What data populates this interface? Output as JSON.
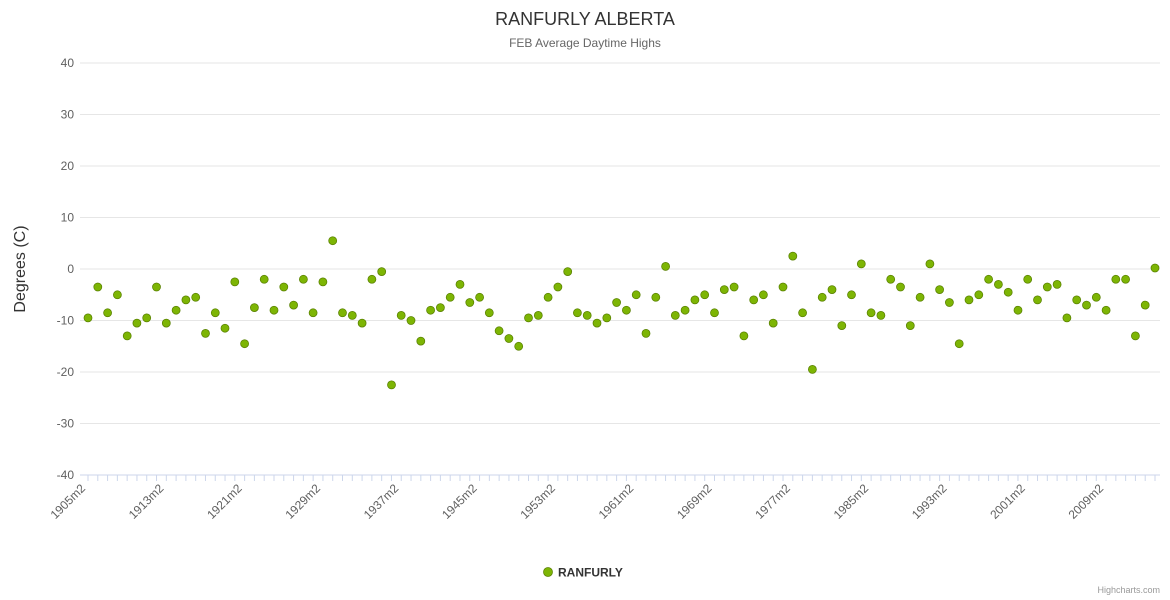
{
  "chart": {
    "title": "RANFURLY ALBERTA",
    "subtitle": "FEB Average Daytime Highs",
    "ylabel": "Degrees (C)",
    "legend_label": "RANFURLY",
    "credit": "Highcharts.com",
    "point_color": "#7db504",
    "point_stroke": "#598000",
    "grid_color": "#e6e6e6"
  },
  "chart_data": {
    "type": "scatter",
    "title": "RANFURLY ALBERTA",
    "subtitle": "FEB Average Daytime Highs",
    "xlabel": "",
    "ylabel": "Degrees (C)",
    "ylim": [
      -40,
      40
    ],
    "ytick_step": 10,
    "grid": true,
    "legend_position": "bottom",
    "series_name": "RANFURLY",
    "x_start_year": 1905,
    "x_label_step": 8,
    "x_label_suffix": "m2",
    "x_labels_shown": [
      "1905m2",
      "1913m2",
      "1921m2",
      "1929m2",
      "1937m2",
      "1945m2",
      "1953m2",
      "1961m2",
      "1969m2",
      "1977m2",
      "1985m2",
      "1993m2",
      "2001m2",
      "2009m2"
    ],
    "years": [
      1905,
      1906,
      1907,
      1908,
      1909,
      1910,
      1911,
      1912,
      1913,
      1914,
      1915,
      1916,
      1917,
      1918,
      1919,
      1920,
      1921,
      1922,
      1923,
      1924,
      1925,
      1926,
      1927,
      1928,
      1929,
      1930,
      1931,
      1932,
      1933,
      1934,
      1935,
      1936,
      1937,
      1938,
      1939,
      1940,
      1941,
      1942,
      1943,
      1944,
      1945,
      1946,
      1947,
      1948,
      1949,
      1950,
      1951,
      1952,
      1953,
      1954,
      1955,
      1956,
      1957,
      1958,
      1959,
      1960,
      1961,
      1962,
      1963,
      1964,
      1965,
      1966,
      1967,
      1968,
      1969,
      1970,
      1971,
      1972,
      1973,
      1974,
      1975,
      1976,
      1977,
      1978,
      1979,
      1980,
      1981,
      1982,
      1983,
      1984,
      1985,
      1986,
      1987,
      1988,
      1989,
      1990,
      1991,
      1992,
      1993,
      1994,
      1995,
      1996,
      1997,
      1998,
      1999,
      2000,
      2001,
      2002,
      2003,
      2004,
      2005,
      2006,
      2007,
      2008,
      2009,
      2010,
      2011,
      2012,
      2013,
      2014
    ],
    "values": [
      -9.5,
      -3.5,
      -8.5,
      -5,
      -13,
      -10.5,
      -9.5,
      -3.5,
      -10.5,
      -8,
      -6,
      -5.5,
      -12.5,
      -8.5,
      -11.5,
      -2.5,
      -14.5,
      -7.5,
      -2,
      -8,
      -3.5,
      -7,
      -2,
      -8.5,
      -2.5,
      5.5,
      -8.5,
      -9,
      -10.5,
      -2,
      -0.5,
      -22.5,
      -9,
      -10,
      -14,
      -8,
      -7.5,
      -5.5,
      -3,
      -6.5,
      -5.5,
      -8.5,
      -12,
      -13.5,
      -15,
      -9.5,
      -9,
      -5.5,
      -3.5,
      -0.5,
      -8.5,
      -9,
      -10.5,
      -9.5,
      -6.5,
      -8,
      -5,
      -12.5,
      -5.5,
      0.5,
      -9,
      -8,
      -6,
      -5,
      -8.5,
      -4,
      -3.5,
      -13,
      -6,
      -5,
      -10.5,
      -3.5,
      2.5,
      -8.5,
      -19.5,
      -5.5,
      -4,
      -11,
      -5,
      1,
      -8.5,
      -9,
      -2,
      -3.5,
      -11,
      -5.5,
      1,
      -4,
      -6.5,
      -14.5,
      -6,
      -5,
      -2,
      -3,
      -4.5,
      -8,
      -2,
      -6,
      -3.5,
      -3,
      -9.5,
      -6,
      -7,
      -5.5,
      -8,
      -2,
      -2,
      -13,
      -7,
      0.2
    ]
  }
}
